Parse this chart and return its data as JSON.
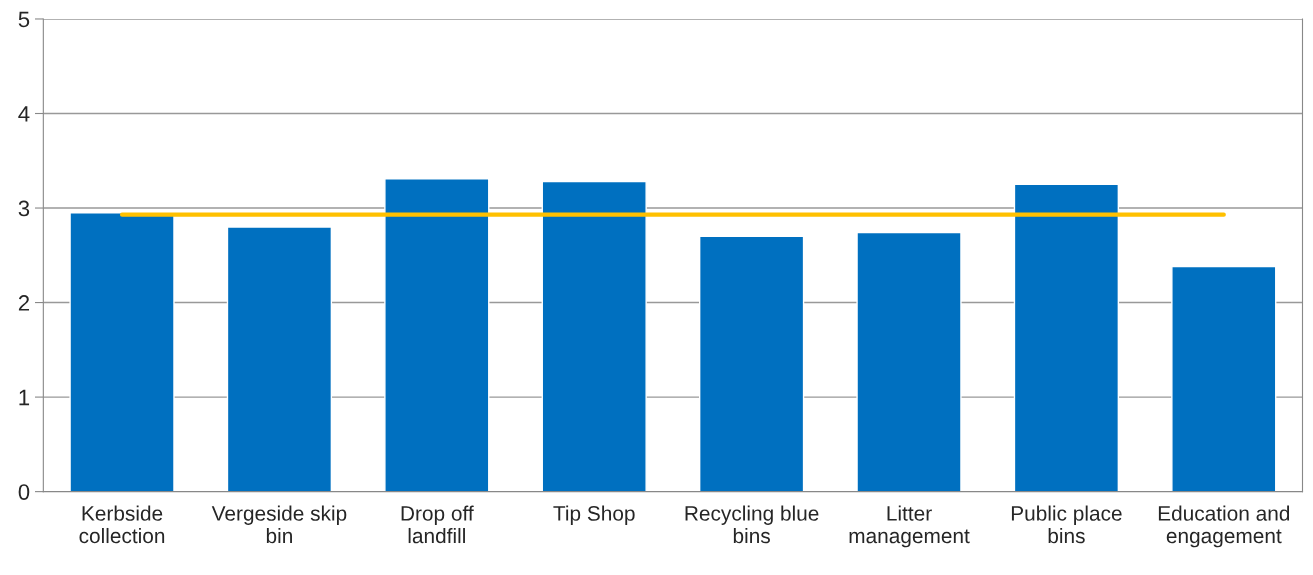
{
  "chart_data": {
    "type": "bar",
    "categories": [
      "Kerbside\ncollection",
      "Vergeside skip\nbin",
      "Drop off\nlandfill",
      "Tip Shop",
      "Recycling blue\nbins",
      "Litter\nmanagement",
      "Public place\nbins",
      "Education and\nengagement"
    ],
    "series": [
      {
        "color": "#0070c0",
        "values": [
          2.95,
          2.8,
          3.31,
          3.28,
          2.7,
          2.74,
          3.25,
          2.38
        ]
      },
      {
        "type": "line",
        "color": "#ffc000",
        "values": [
          2.93,
          2.93,
          2.93,
          2.93,
          2.93,
          2.93,
          2.93,
          2.93
        ]
      }
    ],
    "ylim": [
      0,
      5
    ],
    "yticks": [
      0,
      1,
      2,
      3,
      4,
      5
    ],
    "grid": "y",
    "legend": false,
    "marker": "none",
    "line_style": "solid"
  }
}
